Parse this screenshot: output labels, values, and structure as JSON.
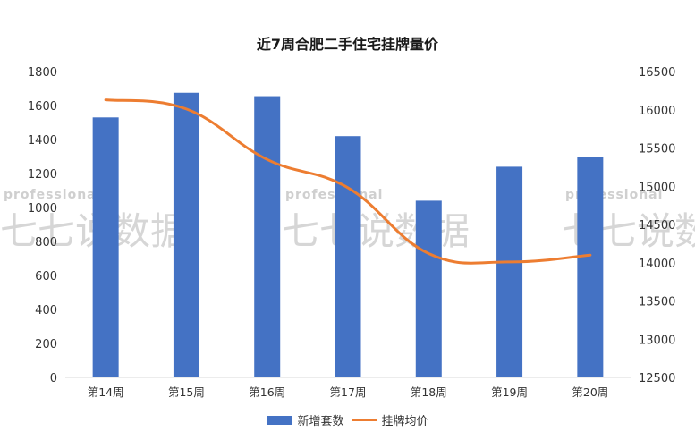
{
  "chart_data": {
    "type": "bar+line",
    "title": "近7周合肥二手住宅挂牌量价",
    "categories": [
      "第14周",
      "第15周",
      "第16周",
      "第17周",
      "第18周",
      "第19周",
      "第20周"
    ],
    "series": [
      {
        "name": "新增套数",
        "type": "bar",
        "axis": "left",
        "color": "#4472C4",
        "values": [
          1530,
          1675,
          1655,
          1420,
          1040,
          1240,
          1295
        ]
      },
      {
        "name": "挂牌均价",
        "type": "line",
        "smooth": true,
        "axis": "right",
        "color": "#ED7D31",
        "values": [
          16130,
          16010,
          15350,
          14980,
          14120,
          14010,
          14100
        ]
      }
    ],
    "left_axis": {
      "ylim": [
        0,
        1800
      ],
      "ticks": [
        0,
        200,
        400,
        600,
        800,
        1000,
        1200,
        1400,
        1600,
        1800
      ]
    },
    "right_axis": {
      "ylim": [
        12500,
        16500
      ],
      "ticks": [
        12500,
        13000,
        13500,
        14000,
        14500,
        15000,
        15500,
        16000,
        16500
      ]
    },
    "xlabel": "",
    "ylabel": "",
    "grid": false,
    "legend_position": "bottom"
  },
  "legend": {
    "items": [
      {
        "label": "新增套数",
        "kind": "bar",
        "color": "#4472C4"
      },
      {
        "label": "挂牌均价",
        "kind": "line",
        "color": "#ED7D31"
      }
    ]
  },
  "watermark": {
    "small_text": "professional",
    "large_text": "七七说数据"
  }
}
